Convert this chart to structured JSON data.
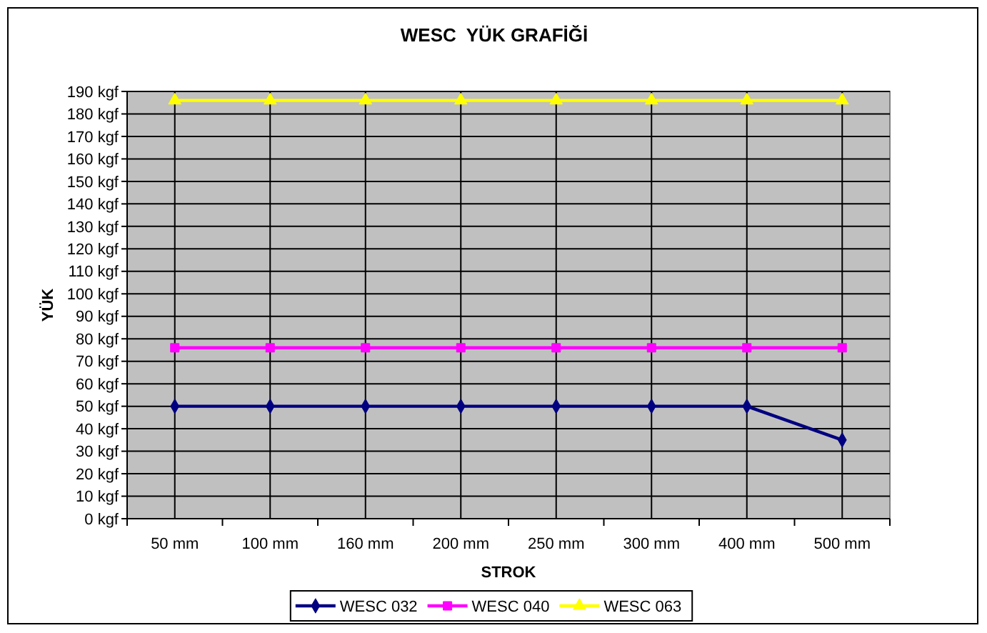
{
  "chart_data": {
    "type": "line",
    "title": "WESC  YÜK GRAFİĞİ",
    "xlabel": "STROK",
    "ylabel": "YÜK",
    "categories": [
      "50 mm",
      "100 mm",
      "160 mm",
      "200 mm",
      "250 mm",
      "300 mm",
      "400 mm",
      "500 mm"
    ],
    "ylim": [
      0,
      190
    ],
    "yticks": [
      {
        "value": 0,
        "label": "0 kgf"
      },
      {
        "value": 10,
        "label": "10 kgf"
      },
      {
        "value": 20,
        "label": "20 kgf"
      },
      {
        "value": 30,
        "label": "30 kgf"
      },
      {
        "value": 40,
        "label": "40 kgf"
      },
      {
        "value": 50,
        "label": "50 kgf"
      },
      {
        "value": 60,
        "label": "60 kgf"
      },
      {
        "value": 70,
        "label": "70 kgf"
      },
      {
        "value": 80,
        "label": "80 kgf"
      },
      {
        "value": 90,
        "label": "90 kgf"
      },
      {
        "value": 100,
        "label": "100 kgf"
      },
      {
        "value": 110,
        "label": "110 kgf"
      },
      {
        "value": 120,
        "label": "120 kgf"
      },
      {
        "value": 130,
        "label": "130 kgf"
      },
      {
        "value": 140,
        "label": "140 kgf"
      },
      {
        "value": 150,
        "label": "150 kgf"
      },
      {
        "value": 160,
        "label": "160 kgf"
      },
      {
        "value": 170,
        "label": "170 kgf"
      },
      {
        "value": 180,
        "label": "180 kgf"
      },
      {
        "value": 190,
        "label": "190 kgf"
      }
    ],
    "grid": true,
    "legend": "bottom",
    "series": [
      {
        "name": "WESC 032",
        "color": "#000080",
        "marker": "diamond",
        "values": [
          50,
          50,
          50,
          50,
          50,
          50,
          50,
          35
        ]
      },
      {
        "name": "WESC 040",
        "color": "#ff00ff",
        "marker": "square",
        "values": [
          76,
          76,
          76,
          76,
          76,
          76,
          76,
          76
        ]
      },
      {
        "name": "WESC 063",
        "color": "#ffff00",
        "marker": "triangle",
        "values": [
          186,
          186,
          186,
          186,
          186,
          186,
          186,
          186
        ]
      }
    ]
  }
}
